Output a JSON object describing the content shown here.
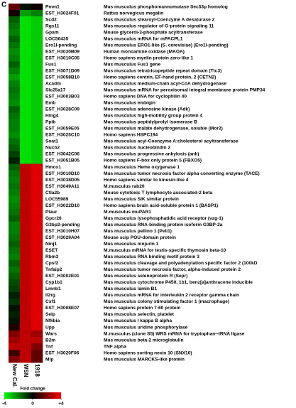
{
  "chart_data": {
    "type": "heatmap",
    "panel_label": "C",
    "categories": [
      "Pmm1",
      "EST_H3024F01",
      "Scd2",
      "Rgs11",
      "Gpam",
      "LOC56435",
      "Ero1l-pending",
      "EST_H3030B09",
      "EST_H3010C05",
      "Fus1",
      "EST_H3071D09",
      "EST_H3058B10",
      "Acadm",
      "Slc25a17",
      "EST_H3003B03",
      "Emb",
      "EST_H3028C09",
      "Hmg4",
      "Ppib",
      "EST_H3059E05",
      "EST_H3025C10",
      "Soat1",
      "Nucb2",
      "EST_H3042C06",
      "EST_H3051B05",
      "Hmox1",
      "EST_H3010D10",
      "EST_H3038D05",
      "EST_H3049A11",
      "Ctla2b",
      "LOC55989",
      "EST_H3022D10",
      "Plaur",
      "Gpcr26",
      "G3bp2-pending",
      "EST_H3010H07",
      "EST_H3029A04",
      "Ninj1",
      "ESET",
      "Rbm3",
      "Cpsf2",
      "Tnfaip2",
      "EST_H3002E01",
      "Cyp1b1",
      "Lmnb1",
      "Il2rg",
      "Csf1",
      "EST_H3008E07",
      "Selp",
      "Nfkbia",
      "Upp",
      "Wars",
      "B2m",
      "Tnf",
      "EST_H3020F06",
      "Mlp"
    ],
    "descriptions": [
      "Mus musculus phosphomannomutase  Sec53p homolog",
      "Rattus norvegicus megalin",
      "Mus musculus stearoyl-Coenzyme A  desaturase 2",
      "Mus musculus regulator of G-protein  signaling 11",
      "Mouse glycerol-3-phosphate  acyltransferase",
      "Mus musculus mRNA for mPACPL1",
      "Mus musculus ERO1-like (S. cerevisiae)  (Ero1l-pending)",
      "Human monoamine oxidase (MAOA)",
      "Homo sapiens myelin protein zero-like 1",
      "Mus musculus Fus1 gene",
      "Mus musculus tetratricopeptide repeat  domain (Ttc3)",
      "Homo sapiens centrin, EF-hand protein,  2 (CETN2)",
      "Mus musculus medium-chain acyl-CoA  dehydrogenase",
      "Mus musculus mRNA for peroxisomal  integral membrane protein PMP34",
      "Homo sapiens DNA for cyclophilin 40",
      "Mus musculus embigin",
      "Mus musculus adenosine kinase (Adk)",
      "Mus musculus high-mobility group  protein 4",
      "Mus musculus peptidylprolyl isomerase B",
      "Mus musculus malate dehydrogenase,  soluble (Mor2)",
      "Homo sapiens HSPC194",
      "Mus musculus acyl-Coenzyme A:cholesterol  acyltransferase",
      "Mus musculus nucleobindin 2",
      "Mus musculus progressive ankylosis (ank)",
      "Homo sapiens F-box only protein 5  (FBXO5)",
      "Mus musculus Heme oxygenase 1",
      "Mus musculus tumor necrosis  factor alpha converting enzyme (TACE)",
      "Homo sapiens similar to kinesin-like 4",
      "M.musculus rab20",
      "Mouse cytotoxic T lymphocyte associated-2 beta",
      "Mus musculus SIK similar protein",
      "Homo sapiens brain acid-soluble protein 1  (BASP1)",
      "M.musculus muPAR1",
      "Mus musculus lysophosphatidic  acid  receptor  (vzg-1)",
      "Mus musculus RNA-binding protein  isoform G3BP-2a",
      "Mus musculus pellino 1 (Peli1)",
      "Mouse scip POU-domain protein",
      "Mus musculus ninjurin 1",
      "M.musculus mRNA for  testis-specific thymosin beta-10",
      "Mus musculus RNA binding motif protein  3",
      "Mus musculus cleavage and polyadenylation  specific factor 2 (100kD",
      "Mus musculus tumor necrosis factor,  alpha-induced protein 2",
      "Mus musculus selenoprotein R (Sepr)",
      "Mus musculus cytochrome P450, 1b1,  benz[a]anthracene inducible",
      "Mus musculus lamin B1",
      "Mus musculus mRNA for interleukin 2  receptor gamma chain",
      "Mus musculus colony stimulating factor 1  (macrophage)",
      "Homo sapiens protein 7-60 protein",
      "Mus musculus selectin, platelet",
      "Mus musculus I kappa B alpha",
      "Mus musculus uridine phosphorylase",
      "M.musculus (clone S5) WRS mRNA for  tryptophan--tRNA ligase",
      "Mus musculus beta-2 microglobulin",
      "TNF alpha",
      "Homo sapiens sorting nexin 10 (SNX10)",
      "Mus musculus MARCKS-like protein"
    ],
    "series": [
      {
        "name": "New Cal.",
        "values": [
          1.5,
          0.3,
          -1.5,
          -1.8,
          -2,
          -1.5,
          -1.8,
          -2.2,
          -2,
          -1.5,
          -2,
          -2.5,
          -2,
          -1.8,
          -2,
          -2.2,
          -1.5,
          -1.8,
          -2,
          -2,
          -2.2,
          -1.8,
          -1.5,
          -1,
          -0.5,
          -1.5,
          -1.8,
          -2,
          -1.8,
          -2,
          -2.2,
          -2,
          -1.8,
          -1.5,
          -2,
          -2,
          -1.8,
          -1.5,
          -1.8,
          -2,
          -1.5,
          -1.8,
          -1.5,
          -1.2,
          -1,
          -0.5,
          -0.8,
          -0.3,
          -0.5,
          -0.3,
          0.5,
          2,
          2.5,
          3,
          1,
          2
        ]
      },
      {
        "name": "WSN",
        "values": [
          -0.3,
          -2.5,
          -3.5,
          -3.5,
          -3.5,
          -3.5,
          -3.5,
          -3.5,
          -3.5,
          -3.5,
          -3.5,
          -3.5,
          -3.5,
          -3.5,
          -3.5,
          -3.5,
          -3.5,
          -3.5,
          -3.5,
          -3.5,
          -3.5,
          -3.5,
          -3.5,
          -3.5,
          -3.5,
          3,
          3,
          3,
          3,
          3,
          3,
          3,
          3,
          3,
          3,
          3,
          3,
          3,
          3,
          3,
          3,
          3,
          3,
          3,
          3,
          3,
          3,
          3,
          3,
          3,
          3,
          3,
          3,
          3,
          3,
          3
        ]
      },
      {
        "name": "1918",
        "values": [
          0.2,
          -2,
          -3.2,
          -3.2,
          -3.2,
          -3.2,
          -3.2,
          -3.2,
          -3.2,
          -3.2,
          -3.2,
          -3.2,
          -3.2,
          -3.2,
          -3.2,
          -3.2,
          -3.2,
          -3.2,
          -3.2,
          -3.2,
          -3.2,
          -3.2,
          -3.2,
          -3.2,
          -3.2,
          3.5,
          3.5,
          3.5,
          3.5,
          3.5,
          3.5,
          3.5,
          3.5,
          3.5,
          3.5,
          3.5,
          3.5,
          3.5,
          3.5,
          3.5,
          3.5,
          3.5,
          3.5,
          3.5,
          3.5,
          3.5,
          3.5,
          3.5,
          3.5,
          3.5,
          3.5,
          2.5,
          3,
          2,
          1.5,
          1.5
        ]
      }
    ],
    "colorbar": {
      "title": "Fold change",
      "zlim": [
        -4,
        4
      ],
      "ticks": [
        -4,
        0,
        {
          "value": 4,
          "label": "+4"
        }
      ],
      "colors": [
        "#00ff00",
        "#000000",
        "#ff0000"
      ]
    }
  }
}
